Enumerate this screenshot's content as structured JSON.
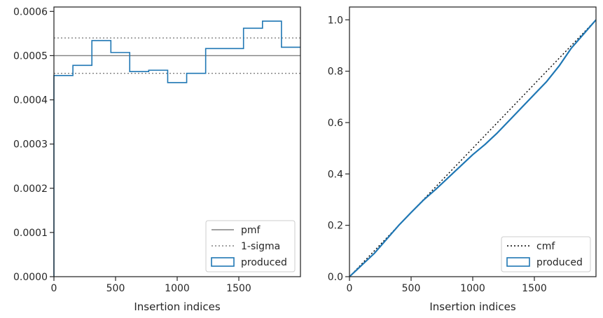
{
  "chart_data": [
    {
      "type": "line",
      "subtype": "step-histogram",
      "xlabel": "Insertion indices",
      "ylabel": "",
      "xlim": [
        0,
        2000
      ],
      "ylim": [
        0,
        0.00061
      ],
      "x_ticks": [
        0,
        500,
        1000,
        1500
      ],
      "x_tick_labels": [
        "0",
        "500",
        "1000",
        "1500"
      ],
      "y_ticks": [
        0,
        0.0001,
        0.0002,
        0.0003,
        0.0004,
        0.0005,
        0.0006
      ],
      "y_tick_labels": [
        "0.0000",
        "0.0001",
        "0.0002",
        "0.0003",
        "0.0004",
        "0.0005",
        "0.0006"
      ],
      "grid": false,
      "legend_position": "lower-right",
      "legend": [
        {
          "label": "pmf",
          "style": "solid",
          "color": "#808080"
        },
        {
          "label": "1-sigma",
          "style": "dotted",
          "color": "#808080"
        },
        {
          "label": "produced",
          "style": "step-box",
          "color": "#1f77b4"
        }
      ],
      "reference_lines": [
        {
          "name": "pmf",
          "y": 0.0005,
          "color": "#808080",
          "style": "solid"
        },
        {
          "name": "1-sigma",
          "y": 0.00054,
          "color": "#808080",
          "style": "dotted"
        },
        {
          "name": "1-sigma",
          "y": 0.00046,
          "color": "#808080",
          "style": "dotted"
        }
      ],
      "series": [
        {
          "name": "produced",
          "color": "#1f77b4",
          "bin_edges": [
            0,
            154,
            308,
            462,
            615,
            769,
            923,
            1077,
            1231,
            1385,
            1538,
            1692,
            1846,
            2000
          ],
          "values": [
            0.000455,
            0.000478,
            0.000534,
            0.000507,
            0.000464,
            0.000467,
            0.000439,
            0.00046,
            0.000516,
            0.000516,
            0.000562,
            0.000578,
            0.000519
          ]
        }
      ]
    },
    {
      "type": "line",
      "xlabel": "Insertion indices",
      "ylabel": "",
      "xlim": [
        0,
        2000
      ],
      "ylim": [
        0,
        1.05
      ],
      "x_ticks": [
        0,
        500,
        1000,
        1500
      ],
      "x_tick_labels": [
        "0",
        "500",
        "1000",
        "1500"
      ],
      "y_ticks": [
        0,
        0.2,
        0.4,
        0.6,
        0.8,
        1.0
      ],
      "y_tick_labels": [
        "0.0",
        "0.2",
        "0.4",
        "0.6",
        "0.8",
        "1.0"
      ],
      "grid": false,
      "legend_position": "lower-right",
      "legend": [
        {
          "label": "cmf",
          "style": "dotted",
          "color": "#000000"
        },
        {
          "label": "produced",
          "style": "step-box",
          "color": "#1f77b4"
        }
      ],
      "series": [
        {
          "name": "cmf",
          "color": "#000000",
          "style": "dotted",
          "x": [
            0,
            2000
          ],
          "y": [
            0,
            1.0
          ]
        },
        {
          "name": "produced",
          "color": "#1f77b4",
          "x": [
            0,
            100,
            200,
            300,
            400,
            500,
            600,
            700,
            800,
            900,
            1000,
            1100,
            1200,
            1300,
            1400,
            1500,
            1600,
            1700,
            1800,
            1900,
            2000
          ],
          "y": [
            0,
            0.045,
            0.09,
            0.145,
            0.2,
            0.25,
            0.298,
            0.34,
            0.385,
            0.43,
            0.475,
            0.515,
            0.56,
            0.61,
            0.66,
            0.71,
            0.76,
            0.82,
            0.89,
            0.945,
            1.0
          ]
        }
      ]
    }
  ]
}
